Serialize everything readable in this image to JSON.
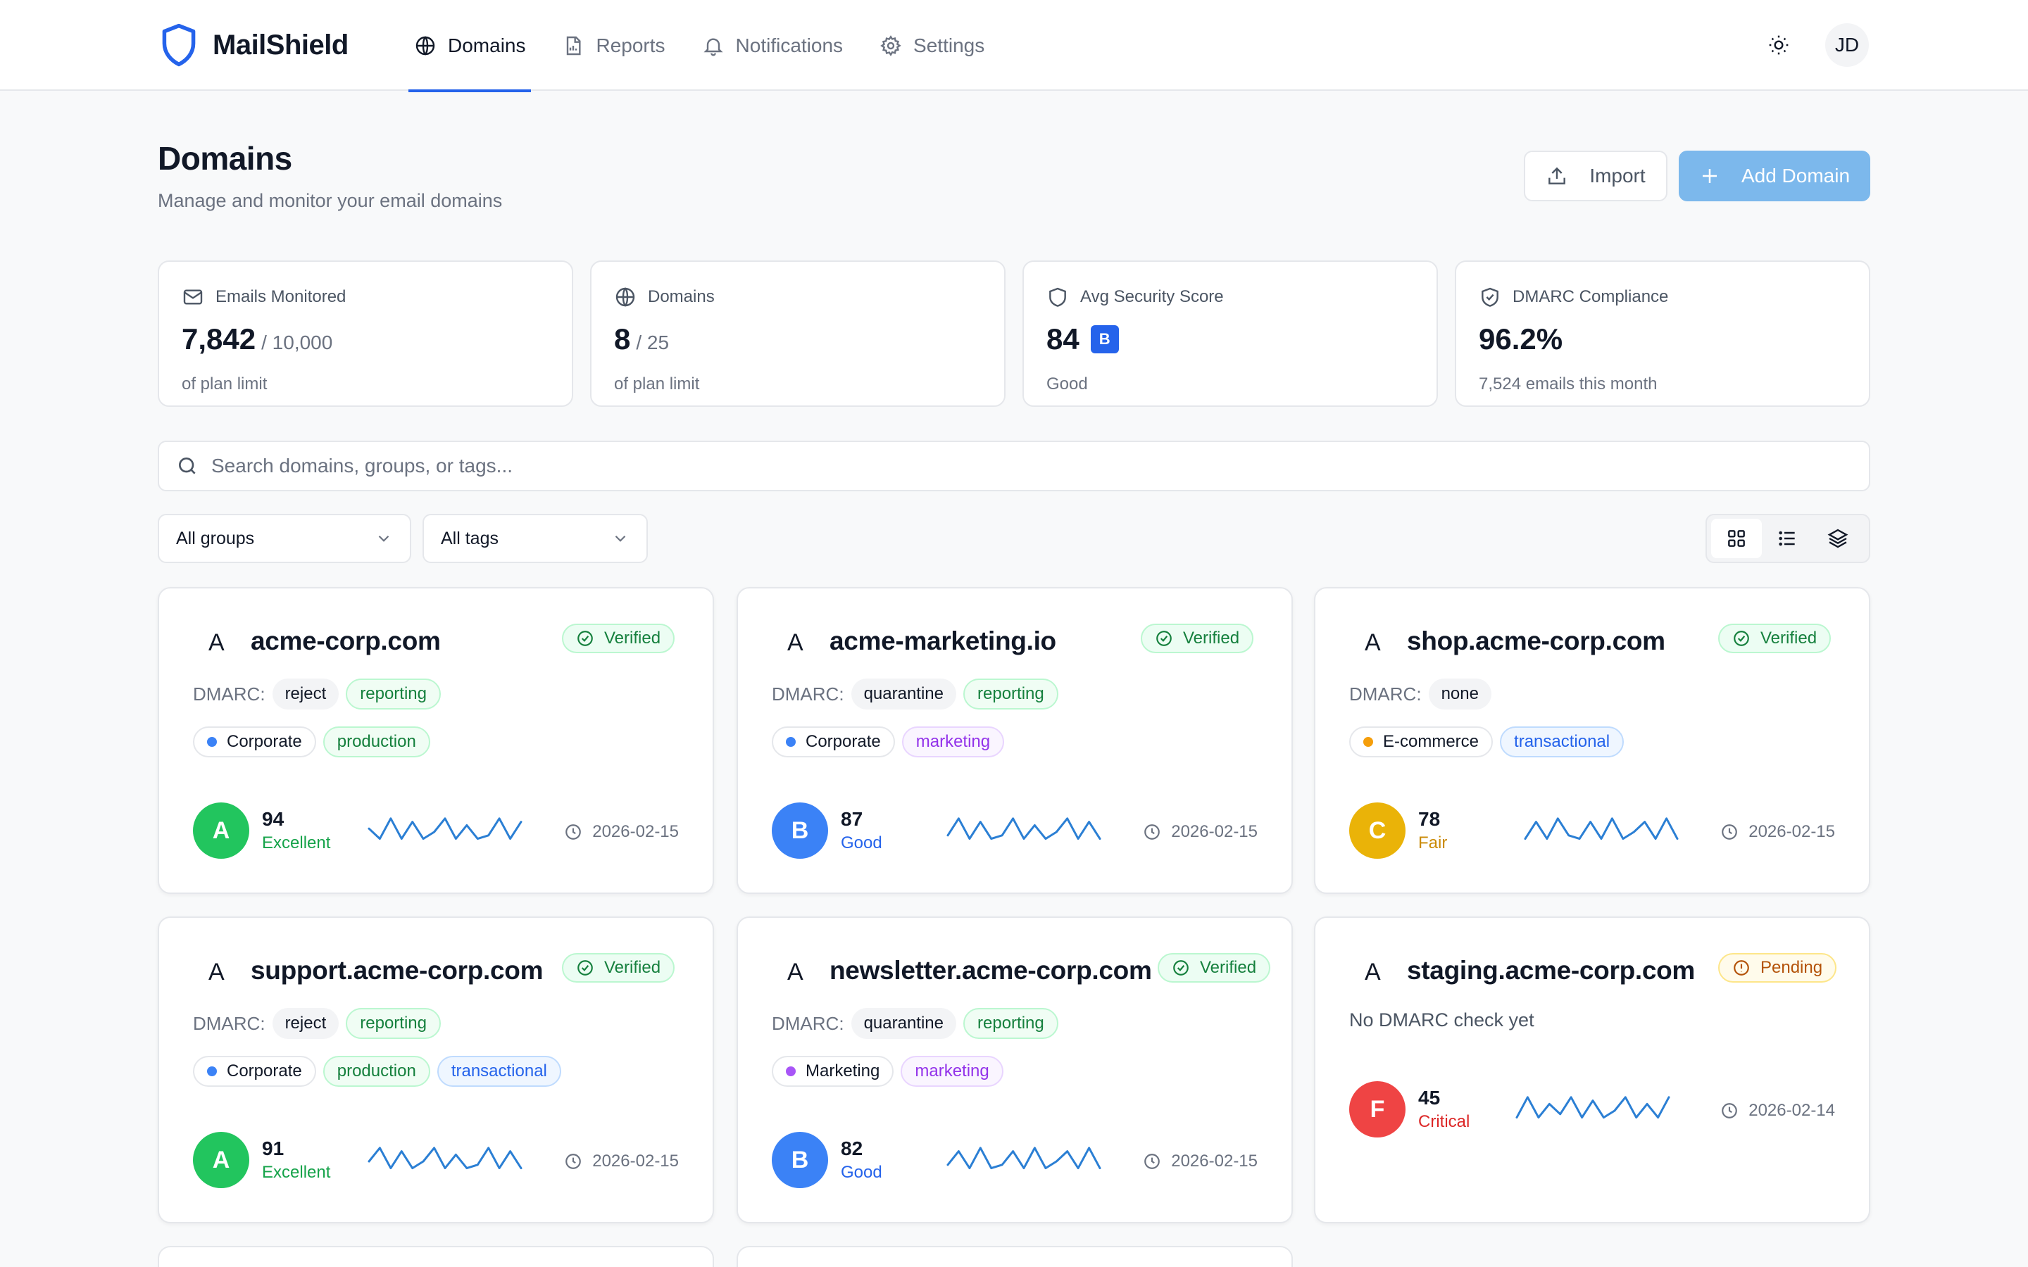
{
  "app": {
    "name": "MailShield",
    "user_initials": "JD"
  },
  "nav": [
    {
      "label": "Domains",
      "icon": "globe-icon",
      "active": true
    },
    {
      "label": "Reports",
      "icon": "report-icon",
      "active": false
    },
    {
      "label": "Notifications",
      "icon": "bell-icon",
      "active": false
    },
    {
      "label": "Settings",
      "icon": "gear-icon",
      "active": false
    }
  ],
  "page": {
    "title": "Domains",
    "subtitle": "Manage and monitor your email domains",
    "import_label": "Import",
    "add_label": "Add Domain"
  },
  "stats": [
    {
      "label": "Emails Monitored",
      "icon": "mail-icon",
      "value": "7,842",
      "suffix": "/ 10,000",
      "foot": "of plan limit"
    },
    {
      "label": "Domains",
      "icon": "globe-icon",
      "value": "8",
      "suffix": "/ 25",
      "foot": "of plan limit"
    },
    {
      "label": "Avg Security Score",
      "icon": "shield-icon",
      "value": "84",
      "grade": "B",
      "foot": "Good"
    },
    {
      "label": "DMARC Compliance",
      "icon": "shield-check-icon",
      "value": "96.2%",
      "foot": "7,524 emails this month"
    }
  ],
  "search": {
    "placeholder": "Search domains, groups, or tags...",
    "value": ""
  },
  "filters": {
    "groups": "All groups",
    "tags": "All tags"
  },
  "colors": {
    "accent": "#2563eb",
    "grade_a": "#22c55e",
    "grade_b": "#3b82f6",
    "grade_c": "#eab308",
    "grade_f": "#ef4444",
    "corporate": "#3b82f6",
    "ecommerce": "#f59e0b",
    "marketing": "#a855f7"
  },
  "domains": [
    {
      "letter": "A",
      "name": "acme-corp.com",
      "status": "Verified",
      "dmarc_label": "DMARC:",
      "policy": "reject",
      "flags": [
        "reporting"
      ],
      "group": "Corporate",
      "group_color": "#3b82f6",
      "tags": [
        {
          "label": "production",
          "style": "green"
        }
      ],
      "grade": "A",
      "grade_color": "#22c55e",
      "score": "94",
      "score_label": "Excellent",
      "score_label_color": "#16a34a",
      "date": "2026-02-15",
      "spark": [
        0.6,
        0.3,
        0.9,
        0.3,
        0.8,
        0.3,
        0.5,
        0.9,
        0.3,
        0.7,
        0.3,
        0.4,
        0.9,
        0.3,
        0.8
      ]
    },
    {
      "letter": "A",
      "name": "acme-marketing.io",
      "status": "Verified",
      "dmarc_label": "DMARC:",
      "policy": "quarantine",
      "flags": [
        "reporting"
      ],
      "group": "Corporate",
      "group_color": "#3b82f6",
      "tags": [
        {
          "label": "marketing",
          "style": "purple"
        }
      ],
      "grade": "B",
      "grade_color": "#3b82f6",
      "score": "87",
      "score_label": "Good",
      "score_label_color": "#2563eb",
      "date": "2026-02-15",
      "spark": [
        0.4,
        0.9,
        0.3,
        0.8,
        0.3,
        0.4,
        0.9,
        0.3,
        0.7,
        0.3,
        0.5,
        0.9,
        0.3,
        0.8,
        0.3
      ]
    },
    {
      "letter": "A",
      "name": "shop.acme-corp.com",
      "status": "Verified",
      "dmarc_label": "DMARC:",
      "policy": "none",
      "flags": [],
      "group": "E-commerce",
      "group_color": "#f59e0b",
      "tags": [
        {
          "label": "transactional",
          "style": "blue"
        }
      ],
      "grade": "C",
      "grade_color": "#eab308",
      "score": "78",
      "score_label": "Fair",
      "score_label_color": "#ca8a04",
      "date": "2026-02-15",
      "spark": [
        0.3,
        0.8,
        0.3,
        0.9,
        0.4,
        0.3,
        0.8,
        0.3,
        0.9,
        0.3,
        0.5,
        0.8,
        0.3,
        0.9,
        0.3
      ]
    },
    {
      "letter": "A",
      "name": "support.acme-corp.com",
      "status": "Verified",
      "dmarc_label": "DMARC:",
      "policy": "reject",
      "flags": [
        "reporting"
      ],
      "group": "Corporate",
      "group_color": "#3b82f6",
      "tags": [
        {
          "label": "production",
          "style": "green"
        },
        {
          "label": "transactional",
          "style": "blue"
        }
      ],
      "grade": "A",
      "grade_color": "#22c55e",
      "score": "91",
      "score_label": "Excellent",
      "score_label_color": "#16a34a",
      "date": "2026-02-15",
      "spark": [
        0.5,
        0.9,
        0.3,
        0.8,
        0.3,
        0.5,
        0.9,
        0.3,
        0.7,
        0.3,
        0.4,
        0.9,
        0.3,
        0.8,
        0.3
      ]
    },
    {
      "letter": "A",
      "name": "newsletter.acme-corp.com",
      "status": "Verified",
      "dmarc_label": "DMARC:",
      "policy": "quarantine",
      "flags": [
        "reporting"
      ],
      "group": "Marketing",
      "group_color": "#a855f7",
      "tags": [
        {
          "label": "marketing",
          "style": "purple"
        }
      ],
      "grade": "B",
      "grade_color": "#3b82f6",
      "score": "82",
      "score_label": "Good",
      "score_label_color": "#2563eb",
      "date": "2026-02-15",
      "spark": [
        0.4,
        0.8,
        0.3,
        0.9,
        0.3,
        0.4,
        0.8,
        0.3,
        0.9,
        0.3,
        0.5,
        0.8,
        0.3,
        0.9,
        0.3
      ]
    },
    {
      "letter": "A",
      "name": "staging.acme-corp.com",
      "status": "Pending",
      "no_check": "No DMARC check yet",
      "grade": "F",
      "grade_color": "#ef4444",
      "score": "45",
      "score_label": "Critical",
      "score_label_color": "#dc2626",
      "date": "2026-02-14",
      "spark": [
        0.3,
        0.9,
        0.3,
        0.7,
        0.4,
        0.9,
        0.3,
        0.8,
        0.3,
        0.5,
        0.9,
        0.3,
        0.7,
        0.3,
        0.9
      ]
    }
  ]
}
